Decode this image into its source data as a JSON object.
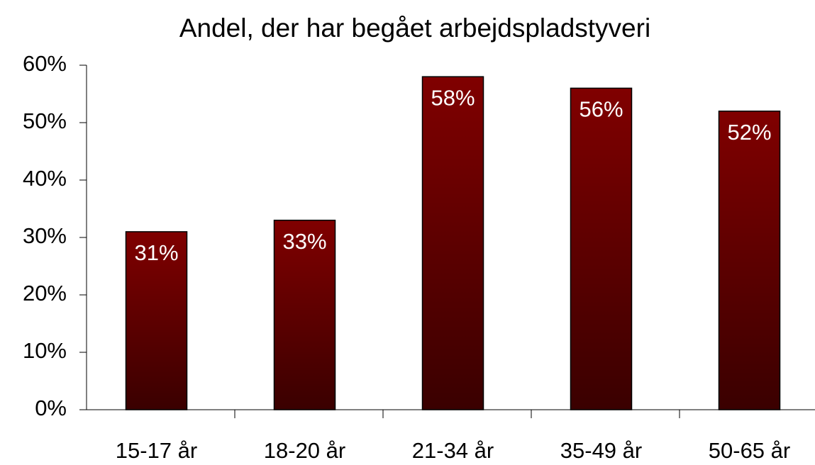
{
  "chart_data": {
    "type": "bar",
    "title": "Andel, der har begået arbejdspladstyveri",
    "categories": [
      "15-17 år",
      "18-20 år",
      "21-34 år",
      "35-49 år",
      "50-65 år"
    ],
    "values": [
      31,
      33,
      58,
      56,
      52
    ],
    "value_labels": [
      "31%",
      "33%",
      "58%",
      "56%",
      "52%"
    ],
    "color": "#800000",
    "ylim": [
      0,
      60
    ],
    "yticks": [
      {
        "value": 0,
        "label": "0%"
      },
      {
        "value": 10,
        "label": "10%"
      },
      {
        "value": 20,
        "label": "20%"
      },
      {
        "value": 30,
        "label": "30%"
      },
      {
        "value": 40,
        "label": "40%"
      },
      {
        "value": 50,
        "label": "50%"
      },
      {
        "value": 60,
        "label": "60%"
      }
    ],
    "grid": false
  }
}
